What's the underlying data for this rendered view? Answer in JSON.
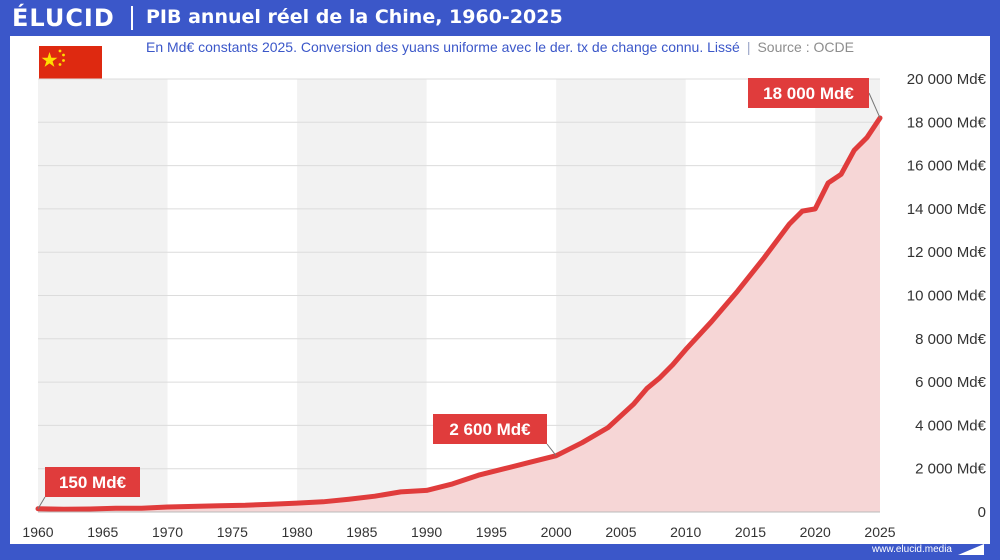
{
  "header": {
    "logo": "ÉLUCID",
    "title": "PIB annuel réel de la Chine, 1960-2025"
  },
  "subtitle": {
    "text": "En Md€ constants 2025. Conversion des yuans uniforme avec le der. tx de change connu. Lissé",
    "separator": "|",
    "source": "Source : OCDE"
  },
  "footer": {
    "url": "www.elucid.media"
  },
  "colors": {
    "brand": "#3b57c9",
    "line": "#e03c3c",
    "area": "#f6d6d6",
    "callout": "#e03c3c",
    "band": "#f2f2f2"
  },
  "chart_data": {
    "type": "area",
    "x": [
      1960,
      1962,
      1964,
      1966,
      1968,
      1970,
      1972,
      1974,
      1976,
      1978,
      1980,
      1982,
      1984,
      1986,
      1988,
      1990,
      1992,
      1994,
      1996,
      1998,
      2000,
      2002,
      2004,
      2006,
      2007,
      2008,
      2009,
      2010,
      2012,
      2014,
      2016,
      2018,
      2019,
      2020,
      2021,
      2022,
      2023,
      2024,
      2025
    ],
    "series": [
      {
        "values": [
          150,
          130,
          140,
          170,
          170,
          230,
          260,
          290,
          310,
          360,
          410,
          470,
          590,
          730,
          930,
          1000,
          1300,
          1700,
          2000,
          2300,
          2600,
          3200,
          3900,
          5000,
          5700,
          6200,
          6800,
          7500,
          8800,
          10200,
          11700,
          13300,
          13900,
          14000,
          15200,
          15600,
          16700,
          17300,
          18200
        ]
      }
    ],
    "xlim": [
      1960,
      2025
    ],
    "ylim": [
      0,
      20000
    ],
    "x_ticks": [
      1960,
      1965,
      1970,
      1975,
      1980,
      1985,
      1990,
      1995,
      2000,
      2005,
      2010,
      2015,
      2020,
      2025
    ],
    "y_ticks": [
      {
        "value": 0,
        "label": "0"
      },
      {
        "value": 2000,
        "label": "2 000 Md€"
      },
      {
        "value": 4000,
        "label": "4 000 Md€"
      },
      {
        "value": 6000,
        "label": "6 000 Md€"
      },
      {
        "value": 8000,
        "label": "8 000 Md€"
      },
      {
        "value": 10000,
        "label": "10 000 Md€"
      },
      {
        "value": 12000,
        "label": "12 000 Md€"
      },
      {
        "value": 14000,
        "label": "14 000 Md€"
      },
      {
        "value": 16000,
        "label": "16 000 Md€"
      },
      {
        "value": 18000,
        "label": "18 000 Md€"
      },
      {
        "value": 20000,
        "label": "20 000 Md€"
      }
    ],
    "bands": [
      [
        1960,
        1970
      ],
      [
        1980,
        1990
      ],
      [
        2000,
        2010
      ],
      [
        2020,
        2025
      ]
    ],
    "grid": true,
    "annotations": [
      {
        "label": "150 Md€",
        "x": 1960,
        "y": 150
      },
      {
        "label": "2 600 Md€",
        "x": 2000,
        "y": 2600
      },
      {
        "label": "18 000 Md€",
        "x": 2025,
        "y": 18200
      }
    ]
  }
}
